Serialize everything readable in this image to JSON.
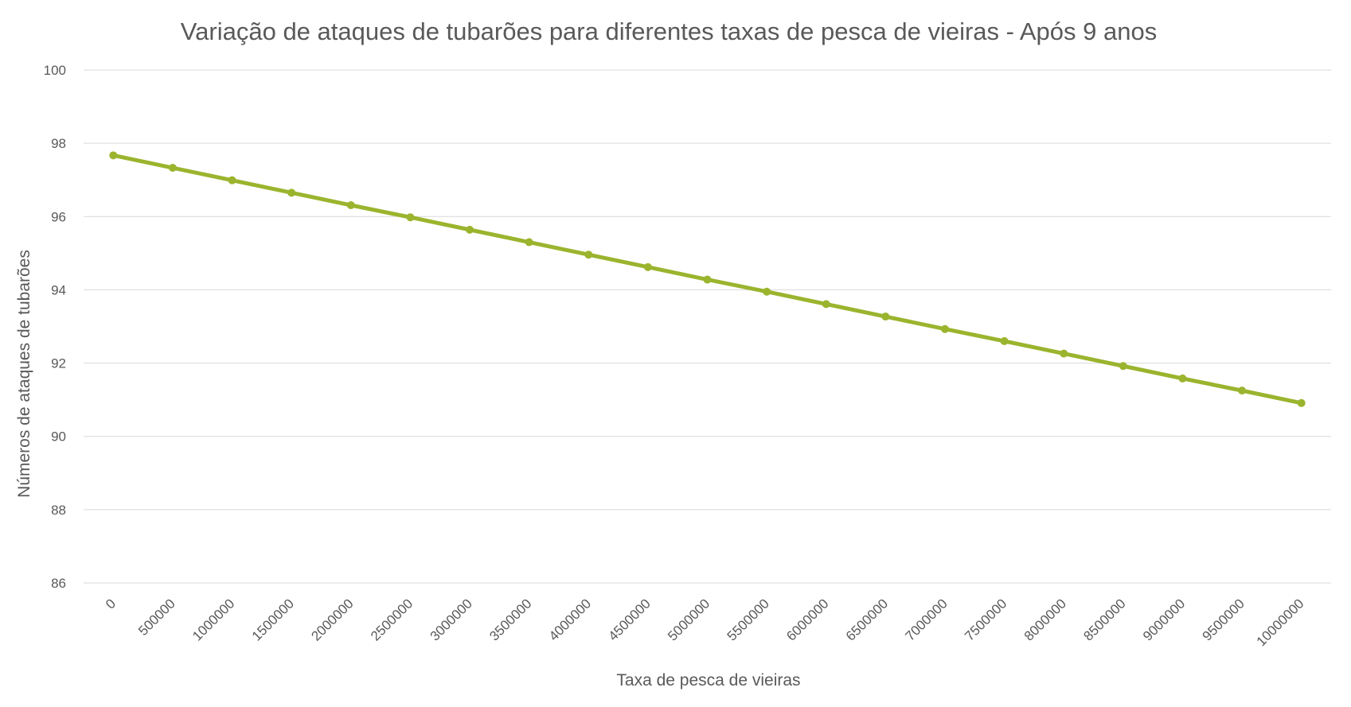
{
  "chart_data": {
    "type": "line",
    "title": "Variação de ataques de tubarões para diferentes taxas de pesca de vieiras - Após 9 anos",
    "xlabel": "Taxa de pesca de vieiras",
    "ylabel": "Números de  ataques de tubarões",
    "categories": [
      "0",
      "500000",
      "1000000",
      "1500000",
      "2000000",
      "2500000",
      "3000000",
      "3500000",
      "4000000",
      "4500000",
      "5000000",
      "5500000",
      "6000000",
      "6500000",
      "7000000",
      "7500000",
      "8000000",
      "8500000",
      "9000000",
      "9500000",
      "10000000"
    ],
    "series": [
      {
        "values": [
          97.67,
          97.33,
          96.99,
          96.65,
          96.31,
          95.98,
          95.64,
          95.3,
          94.96,
          94.62,
          94.28,
          93.95,
          93.61,
          93.27,
          92.93,
          92.6,
          92.26,
          91.92,
          91.58,
          91.25,
          90.91
        ],
        "color": "#9bb42e"
      }
    ],
    "ylim": [
      86,
      100
    ],
    "yticks": [
      86,
      88,
      90,
      92,
      94,
      96,
      98,
      100
    ],
    "grid": true,
    "legend": "none"
  }
}
